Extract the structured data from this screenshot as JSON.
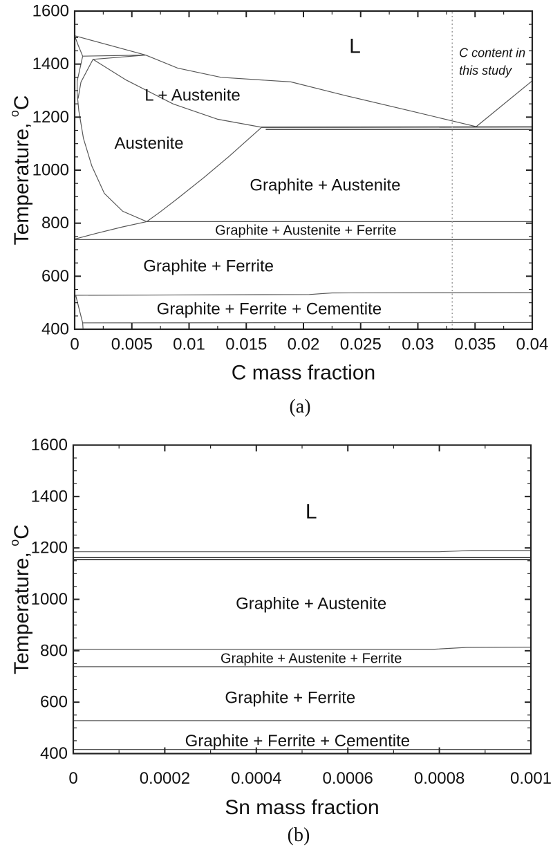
{
  "figure": {
    "background": "#ffffff",
    "text_color": "#111111",
    "frame_color": "#222222",
    "line_color": "#575757",
    "emph_line_color": "#2e2e2e",
    "dotted_line_color": "#8f8f8f"
  },
  "chart_data": [
    {
      "type": "line",
      "subtype": "phase-diagram",
      "panel": "a",
      "caption": "(a)",
      "xlabel": "C mass fraction",
      "ylabel": {
        "pre": "Temperature, ",
        "sup": "o",
        "unit": "C"
      },
      "xlim": [
        0,
        0.04
      ],
      "ylim": [
        400,
        1600
      ],
      "grid": false,
      "x_ticks": {
        "values": [
          0,
          0.005,
          0.01,
          0.015,
          0.02,
          0.025,
          0.03,
          0.035,
          0.04
        ],
        "labels": [
          "0",
          "0.005",
          "0.01",
          "0.015",
          "0.02",
          "0.025",
          "0.03",
          "0.035",
          "0.04"
        ],
        "minor_step": 0.0025
      },
      "y_ticks": {
        "values": [
          1600,
          1400,
          1200,
          1000,
          800,
          600,
          400
        ],
        "labels": [
          "1600",
          "1400",
          "1200",
          "1000",
          "800",
          "600",
          "400"
        ],
        "minor_step": 50
      },
      "regions": [
        {
          "label": "L",
          "x": 0.0245,
          "t": 1467,
          "size": "lg"
        },
        {
          "label": "L + Austenite",
          "x": 0.0103,
          "t": 1282,
          "size": "md"
        },
        {
          "label": "Austenite",
          "x": 0.0065,
          "t": 1100,
          "size": "md"
        },
        {
          "label": "Graphite + Austenite",
          "x": 0.0219,
          "t": 943,
          "size": "md"
        },
        {
          "label": "Graphite + Austenite + Ferrite",
          "x": 0.0202,
          "t": 772,
          "size": "sm"
        },
        {
          "label": "Graphite + Ferrite",
          "x": 0.0117,
          "t": 637,
          "size": "md"
        },
        {
          "label": "Graphite + Ferrite + Cementite",
          "x": 0.017,
          "t": 476,
          "size": "md"
        }
      ],
      "boundaries": [
        {
          "name": "delta-liquidus",
          "points": [
            [
              0,
              1507
            ],
            [
              0.0062,
              1434
            ]
          ]
        },
        {
          "name": "delta-solidus",
          "points": [
            [
              0,
              1507
            ],
            [
              0.0003,
              1472
            ],
            [
              0.0007,
              1430
            ]
          ]
        },
        {
          "name": "peritectic-line",
          "points": [
            [
              0.0007,
              1430
            ],
            [
              0.0062,
              1434
            ]
          ]
        },
        {
          "name": "gamma-upper-left",
          "points": [
            [
              0.0016,
              1418
            ],
            [
              0.0062,
              1434
            ]
          ]
        },
        {
          "name": "delta-gamma-boundary",
          "points": [
            [
              0.0007,
              1430
            ],
            [
              0.00022,
              1335
            ],
            [
              0.00022,
              1290
            ]
          ]
        },
        {
          "name": "gamma-left-sliver",
          "points": [
            [
              0.0016,
              1418
            ],
            [
              0.00055,
              1332
            ],
            [
              0.0003,
              1270
            ]
          ]
        },
        {
          "name": "austenite-left-solvus",
          "points": [
            [
              0.00022,
              1290
            ],
            [
              0.00036,
              1224
            ],
            [
              0.00077,
              1120
            ],
            [
              0.0015,
              1016
            ],
            [
              0.0026,
              912
            ],
            [
              0.0042,
              845
            ],
            [
              0.0063,
              806
            ]
          ]
        },
        {
          "name": "gamma-solidus",
          "points": [
            [
              0.0016,
              1418
            ],
            [
              0.0045,
              1340
            ],
            [
              0.0086,
              1250
            ],
            [
              0.0125,
              1192
            ],
            [
              0.0163,
              1162
            ]
          ]
        },
        {
          "name": "gamma-liquidus",
          "points": [
            [
              0.0062,
              1434
            ],
            [
              0.009,
              1385
            ],
            [
              0.0128,
              1350
            ],
            [
              0.0189,
              1333
            ],
            [
              0.0237,
              1281
            ],
            [
              0.0297,
              1220
            ],
            [
              0.0351,
              1164
            ]
          ]
        },
        {
          "name": "graphite-liquidus",
          "points": [
            [
              0.0351,
              1164
            ],
            [
              0.04,
              1337
            ]
          ]
        },
        {
          "name": "eutectic-upper",
          "points": [
            [
              0.0163,
              1162
            ],
            [
              0.04,
              1163
            ]
          ],
          "emph": true
        },
        {
          "name": "eutectic-lower",
          "points": [
            [
              0.0167,
              1154
            ],
            [
              0.04,
              1154
            ]
          ],
          "emph": true
        },
        {
          "name": "austenite-solvus-right",
          "points": [
            [
              0.0163,
              1160
            ],
            [
              0.0135,
              1052
            ],
            [
              0.0113,
              972
            ],
            [
              0.009,
              893
            ],
            [
              0.0074,
              840
            ],
            [
              0.0063,
              806
            ]
          ]
        },
        {
          "name": "graphite-austenite-ferrite-top",
          "points": [
            [
              0.0063,
              806
            ],
            [
              0.04,
              806
            ]
          ]
        },
        {
          "name": "ferrite-austenite-wedge",
          "points": [
            [
              0,
              740
            ],
            [
              0.002,
              763
            ],
            [
              0.0042,
              786
            ],
            [
              0.0063,
              806
            ]
          ]
        },
        {
          "name": "a1-line",
          "points": [
            [
              0,
              738
            ],
            [
              0.04,
              738
            ]
          ]
        },
        {
          "name": "cementite-top-line",
          "points": [
            [
              0,
              528
            ],
            [
              0.0205,
              531
            ],
            [
              0.0225,
              537
            ],
            [
              0.04,
              538
            ]
          ]
        },
        {
          "name": "bottom-line",
          "points": [
            [
              0.0007,
              424
            ],
            [
              0.04,
              425
            ]
          ]
        },
        {
          "name": "corner-boundary",
          "points": [
            [
              0.0001,
              526
            ],
            [
              0.0007,
              424
            ],
            [
              0.00073,
              403
            ]
          ]
        }
      ],
      "study_line": {
        "x": 0.033
      },
      "annotation": {
        "lines": [
          "C content in",
          "this study"
        ],
        "x": 0.0336,
        "t_lines": [
          1442,
          1376
        ]
      }
    },
    {
      "type": "line",
      "subtype": "phase-diagram",
      "panel": "b",
      "caption": "(b)",
      "xlabel": "Sn mass fraction",
      "ylabel": {
        "pre": "Temperature, ",
        "sup": "o",
        "unit": "C"
      },
      "xlim": [
        0,
        0.001
      ],
      "ylim": [
        400,
        1600
      ],
      "grid": false,
      "x_ticks": {
        "values": [
          0,
          0.0002,
          0.0004,
          0.0006,
          0.0008,
          0.001
        ],
        "labels": [
          "0",
          "0.0002",
          "0.0004",
          "0.0006",
          "0.0008",
          "0.001"
        ],
        "minor_step": 0.0001
      },
      "y_ticks": {
        "values": [
          1600,
          1400,
          1200,
          1000,
          800,
          600,
          400
        ],
        "labels": [
          "1600",
          "1400",
          "1200",
          "1000",
          "800",
          "600",
          "400"
        ],
        "minor_step": 50
      },
      "regions": [
        {
          "label": "L",
          "x": 0.00052,
          "t": 1340,
          "size": "lg"
        },
        {
          "label": "Graphite + Austenite",
          "x": 0.00052,
          "t": 983,
          "size": "md"
        },
        {
          "label": "Graphite + Austenite + Ferrite",
          "x": 0.00052,
          "t": 768,
          "size": "sm"
        },
        {
          "label": "Graphite + Ferrite",
          "x": 0.000474,
          "t": 617,
          "size": "md"
        },
        {
          "label": "Graphite + Ferrite + Cementite",
          "x": 0.00049,
          "t": 448,
          "size": "md"
        }
      ],
      "boundaries": [
        {
          "name": "liquidus-line",
          "points": [
            [
              0,
              1185
            ],
            [
              0.0008,
              1185
            ],
            [
              0.00087,
              1190
            ],
            [
              0.001,
              1190
            ]
          ]
        },
        {
          "name": "eutectic-upper",
          "points": [
            [
              0,
              1163
            ],
            [
              0.001,
              1163
            ]
          ],
          "emph": true
        },
        {
          "name": "eutectic-lower",
          "points": [
            [
              0,
              1155
            ],
            [
              0.001,
              1155
            ]
          ],
          "emph": true
        },
        {
          "name": "graphite-austenite-ferrite-top",
          "points": [
            [
              0,
              806
            ],
            [
              0.00079,
              806
            ],
            [
              0.00086,
              813
            ],
            [
              0.001,
              814
            ]
          ]
        },
        {
          "name": "a1-line",
          "points": [
            [
              0,
              738
            ],
            [
              0.001,
              738
            ]
          ]
        },
        {
          "name": "cementite-top-line",
          "points": [
            [
              0,
              528
            ],
            [
              0.001,
              528
            ]
          ]
        },
        {
          "name": "bottom-line",
          "points": [
            [
              0,
              416
            ],
            [
              0.001,
              416
            ]
          ]
        }
      ]
    }
  ]
}
